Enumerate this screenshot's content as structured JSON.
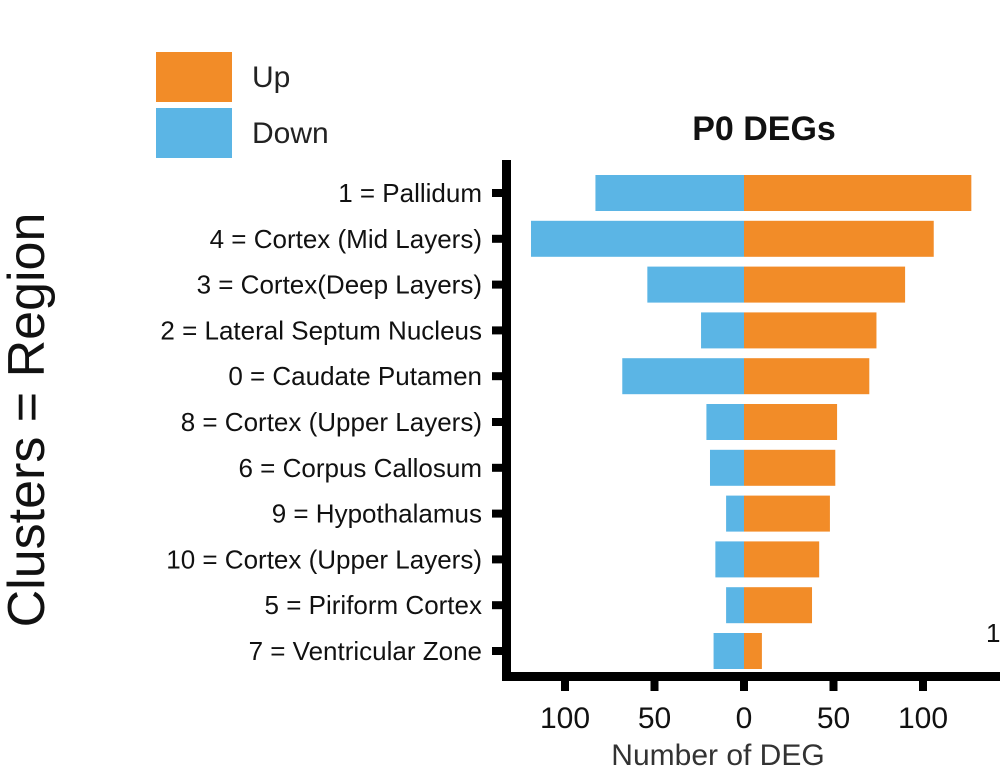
{
  "chart_data": {
    "type": "bar",
    "orientation": "horizontal-diverging",
    "title": "P0 DEGs",
    "xlabel": "Number of DEG",
    "ylabel": "Clusters = Region",
    "categories": [
      "1 = Pallidum",
      "4 = Cortex (Mid Layers)",
      "3 = Cortex(Deep Layers)",
      "2 = Lateral Septum Nucleus",
      "0 = Caudate Putamen",
      "8 = Cortex (Upper Layers)",
      "6 = Corpus Callosum",
      "9 = Hypothalamus",
      "10 = Cortex (Upper Layers)",
      "5 = Piriform Cortex",
      "7 = Ventricular Zone"
    ],
    "series": [
      {
        "name": "Up",
        "color": "#F28C28",
        "direction": "right",
        "values": [
          127,
          106,
          90,
          74,
          70,
          52,
          51,
          48,
          42,
          38,
          10
        ]
      },
      {
        "name": "Down",
        "color": "#5BB5E5",
        "direction": "left",
        "values": [
          83,
          119,
          54,
          24,
          68,
          21,
          19,
          10,
          16,
          10,
          17
        ]
      }
    ],
    "xticks": [
      {
        "value": -100,
        "label": "100"
      },
      {
        "value": -50,
        "label": "50"
      },
      {
        "value": 0,
        "label": "0"
      },
      {
        "value": 50,
        "label": "50"
      },
      {
        "value": 100,
        "label": "100"
      }
    ],
    "xlim": [
      -130,
      140
    ],
    "legend_position": "top-left",
    "grid": false,
    "corner_note": "1"
  }
}
